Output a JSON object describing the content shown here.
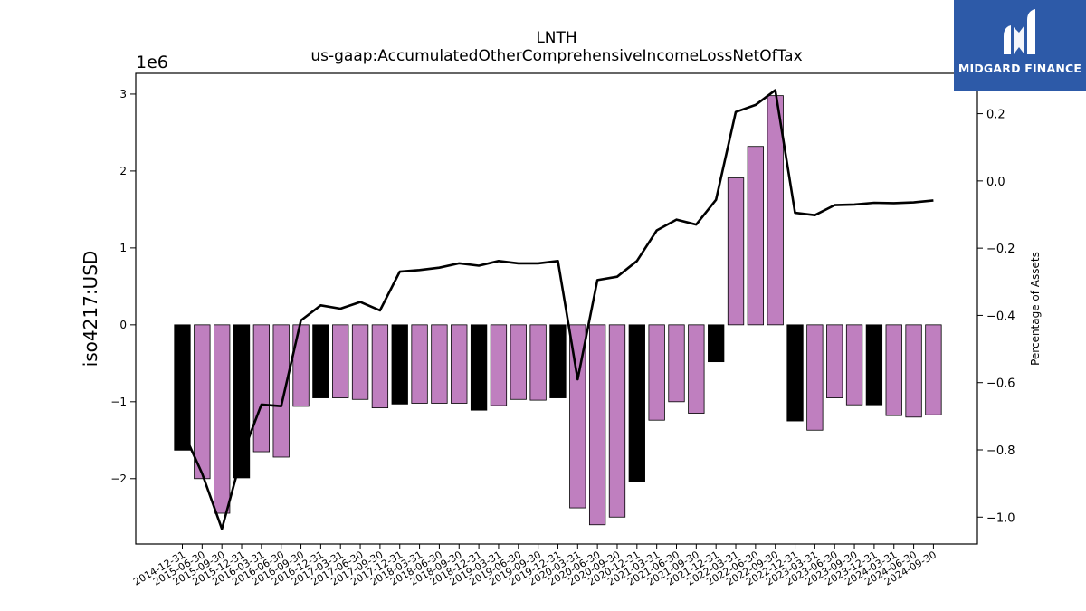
{
  "chart_data": {
    "type": "bar",
    "title": "LNTH",
    "subtitle": "us-gaap:AccumulatedOtherComprehensiveIncomeLossNetOfTax",
    "ylabel": "iso4217:USD",
    "y_offset_text": "1e6",
    "y2label": "Percentage of Assets",
    "ylim": [
      -2.85,
      3.27
    ],
    "y2lim": [
      -1.08,
      0.32
    ],
    "yticks": [
      -2,
      -1,
      0,
      1,
      2,
      3
    ],
    "y2ticks": [
      -1.0,
      -0.8,
      -0.6,
      -0.4,
      -0.2,
      0.0,
      0.2
    ],
    "categories": [
      "2014-12-31",
      "2015-06-30",
      "2015-09-30",
      "2015-12-31",
      "2016-03-31",
      "2016-06-30",
      "2016-09-30",
      "2016-12-31",
      "2017-03-31",
      "2017-06-30",
      "2017-09-30",
      "2017-12-31",
      "2018-03-31",
      "2018-06-30",
      "2018-09-30",
      "2018-12-31",
      "2019-03-31",
      "2019-06-30",
      "2019-09-30",
      "2019-12-31",
      "2020-03-31",
      "2020-06-30",
      "2020-09-30",
      "2020-12-31",
      "2021-03-31",
      "2021-06-30",
      "2021-09-30",
      "2021-12-31",
      "2022-03-31",
      "2022-06-30",
      "2022-09-30",
      "2022-12-31",
      "2023-03-31",
      "2023-06-30",
      "2023-09-30",
      "2023-12-31",
      "2024-03-31",
      "2024-06-30",
      "2024-09-30"
    ],
    "series": [
      {
        "type": "bar",
        "values": [
          -1.63,
          -2.0,
          -2.45,
          -1.99,
          -1.65,
          -1.72,
          -1.06,
          -0.95,
          -0.95,
          -0.97,
          -1.08,
          -1.03,
          -1.02,
          -1.02,
          -1.02,
          -1.11,
          -1.05,
          -0.97,
          -0.98,
          -0.95,
          -2.38,
          -2.6,
          -2.5,
          -2.04,
          -1.24,
          -1.0,
          -1.15,
          -0.48,
          1.91,
          2.32,
          2.98,
          -1.25,
          -1.37,
          -0.95,
          -1.04,
          -1.04,
          -1.18,
          -1.2,
          -1.17
        ],
        "bar_colors": [
          "#000000",
          "#bf7fbf",
          "#bf7fbf",
          "#000000",
          "#bf7fbf",
          "#bf7fbf",
          "#bf7fbf",
          "#000000",
          "#bf7fbf",
          "#bf7fbf",
          "#bf7fbf",
          "#000000",
          "#bf7fbf",
          "#bf7fbf",
          "#bf7fbf",
          "#000000",
          "#bf7fbf",
          "#bf7fbf",
          "#bf7fbf",
          "#000000",
          "#bf7fbf",
          "#bf7fbf",
          "#bf7fbf",
          "#000000",
          "#bf7fbf",
          "#bf7fbf",
          "#bf7fbf",
          "#000000",
          "#bf7fbf",
          "#bf7fbf",
          "#bf7fbf",
          "#000000",
          "#bf7fbf",
          "#bf7fbf",
          "#bf7fbf",
          "#000000",
          "#bf7fbf",
          "#bf7fbf",
          "#bf7fbf"
        ]
      },
      {
        "type": "line",
        "axis": "secondary",
        "color": "#000000",
        "values": [
          -0.74,
          -0.87,
          -1.035,
          -0.82,
          -0.665,
          -0.67,
          -0.415,
          -0.37,
          -0.38,
          -0.36,
          -0.385,
          -0.27,
          -0.265,
          -0.258,
          -0.245,
          -0.252,
          -0.238,
          -0.245,
          -0.245,
          -0.238,
          -0.59,
          -0.295,
          -0.285,
          -0.238,
          -0.147,
          -0.115,
          -0.13,
          -0.056,
          0.205,
          0.226,
          0.27,
          -0.095,
          -0.102,
          -0.072,
          -0.07,
          -0.065,
          -0.066,
          -0.064,
          -0.058
        ]
      }
    ],
    "grid": false,
    "legend": "none"
  },
  "logo": {
    "text": "MIDGARD FINANCE",
    "bg": "#2d5aa8"
  }
}
